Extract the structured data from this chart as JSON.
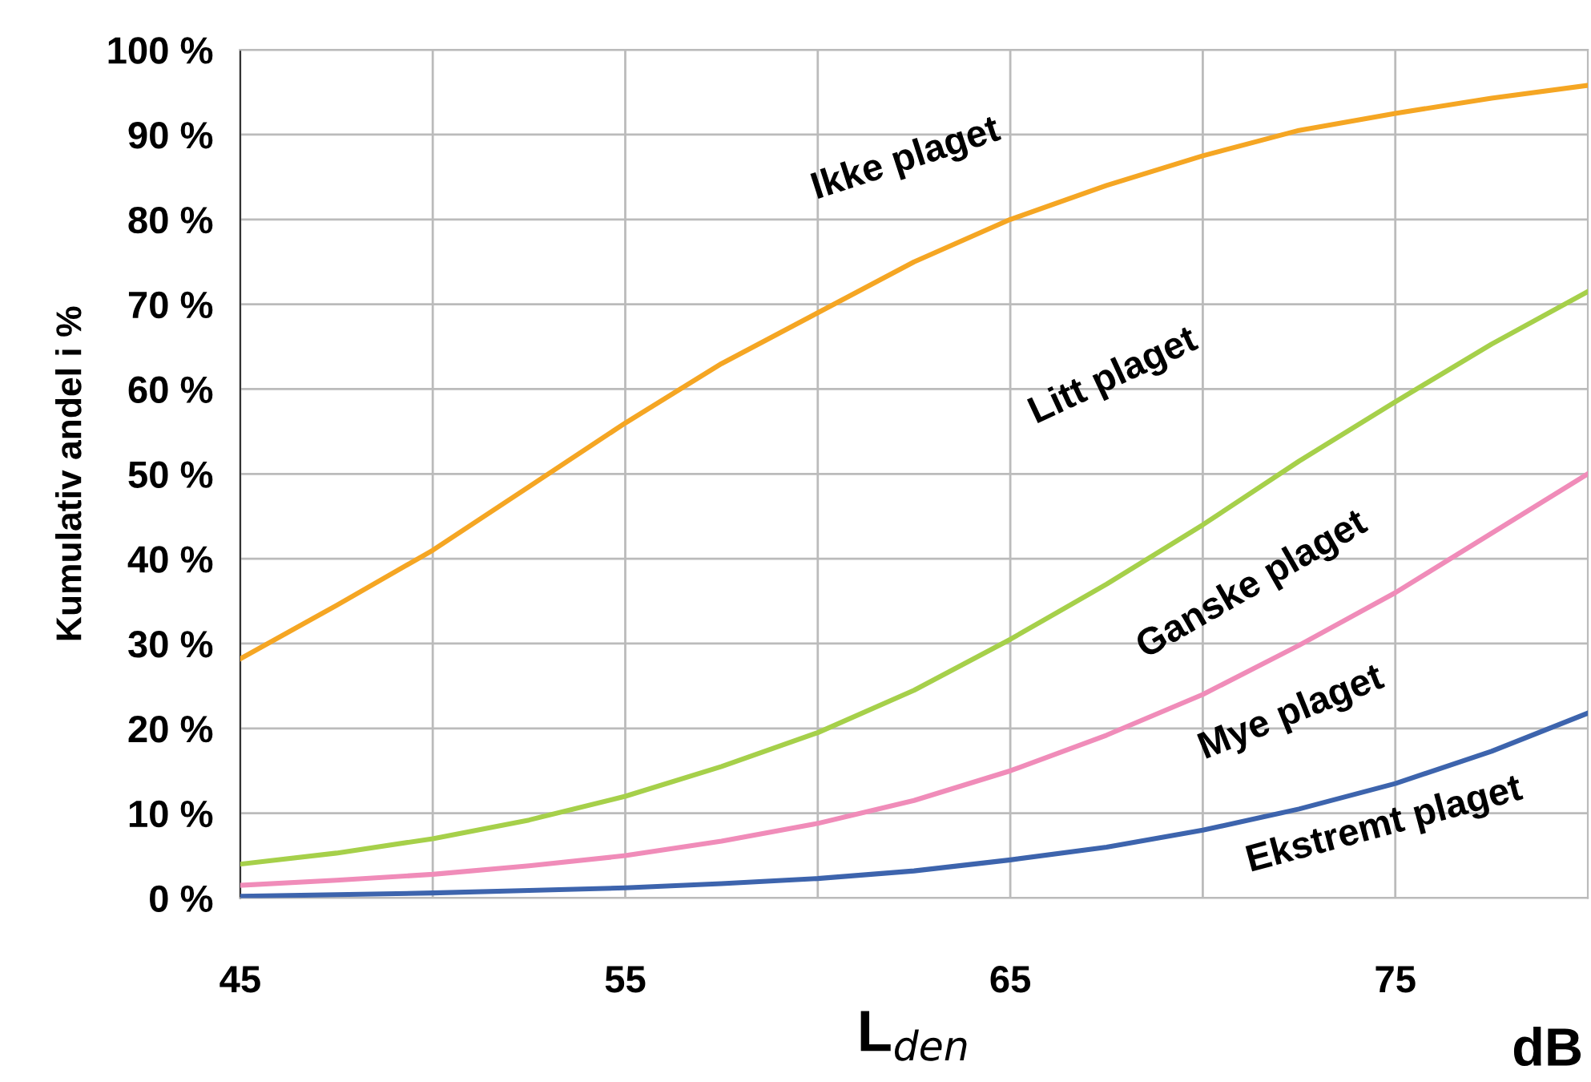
{
  "chart_data": {
    "type": "line",
    "xlabel": "L$_{den}$",
    "ylabel": "Kumulativ andel i %",
    "x": [
      45,
      47.5,
      50,
      52.5,
      55,
      57.5,
      60,
      62.5,
      65,
      67.5,
      70,
      72.5,
      75,
      77.5,
      80
    ],
    "series": [
      {
        "color": "#f5a623",
        "values": [
          28.2,
          34.5,
          41,
          48.5,
          56,
          63,
          69,
          75,
          80,
          84,
          87.5,
          90.5,
          92.5,
          94.3,
          95.8
        ]
      },
      {
        "color": "#a6d04a",
        "values": [
          4,
          5.3,
          7,
          9.2,
          12,
          15.5,
          19.5,
          24.5,
          30.5,
          37,
          44,
          51.5,
          58.5,
          65.3,
          71.5
        ]
      },
      {
        "color": "#f08cb9",
        "values": [
          1.5,
          2.1,
          2.8,
          3.8,
          5,
          6.7,
          8.8,
          11.5,
          15,
          19.2,
          24,
          29.8,
          36,
          43,
          50
        ]
      },
      {
        "color": "#3d64ad",
        "values": [
          0.2,
          0.4,
          0.6,
          0.9,
          1.2,
          1.7,
          2.3,
          3.2,
          4.5,
          6,
          8,
          10.5,
          13.5,
          17.3,
          21.8
        ]
      }
    ],
    "xlim": [
      45,
      80
    ],
    "ylim": [
      0,
      100
    ],
    "xticks": [
      45,
      {
        "value": 50,
        "label": null
      },
      55,
      {
        "value": 60,
        "label": null
      },
      65,
      {
        "value": 70,
        "label": null
      },
      75
    ],
    "yticks": [
      {
        "value": 0,
        "label": "0 %"
      },
      {
        "value": 10,
        "label": "10 %"
      },
      {
        "value": 20,
        "label": "20 %"
      },
      {
        "value": 30,
        "label": "30 %"
      },
      {
        "value": 40,
        "label": "40 %"
      },
      {
        "value": 50,
        "label": "50 %"
      },
      {
        "value": 60,
        "label": "60 %"
      },
      {
        "value": 70,
        "label": "70 %"
      },
      {
        "value": 80,
        "label": "80 %"
      },
      {
        "value": 90,
        "label": "90 %"
      },
      {
        "value": 100,
        "label": "100 %"
      }
    ],
    "grid": true,
    "marker": "none",
    "line_style": "solid",
    "annotations": [
      "Ikke plaget",
      "Litt plaget",
      "Ganske plaget",
      "Mye plaget",
      "Ekstremt plaget",
      "dB"
    ]
  }
}
